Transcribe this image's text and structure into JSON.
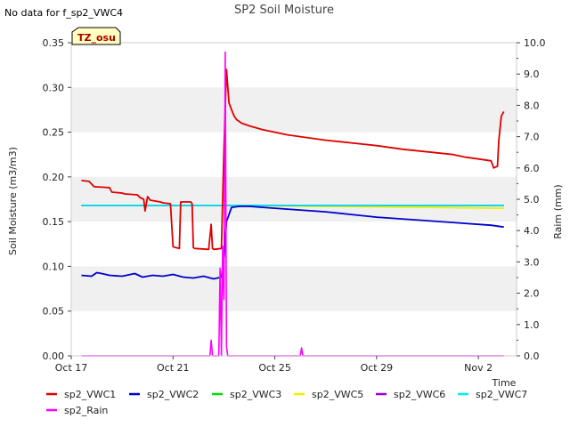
{
  "note": "No data for f_sp2_VWC4",
  "badge": "TZ_osu",
  "chart_data": {
    "type": "line",
    "title": "SP2 Soil Moisture",
    "xlabel": "Time",
    "ylabel": "Soil Moisture (m3/m3)",
    "y2label": "Raim (mm)",
    "xlim": [
      0,
      17.5
    ],
    "ylim": [
      0.0,
      0.35
    ],
    "y2lim": [
      0.0,
      10.0
    ],
    "x_ticks": [
      {
        "value": 0,
        "label": "Oct 17"
      },
      {
        "value": 4,
        "label": "Oct 21"
      },
      {
        "value": 8,
        "label": "Oct 25"
      },
      {
        "value": 12,
        "label": "Oct 29"
      },
      {
        "value": 16,
        "label": "Nov 2"
      }
    ],
    "y_ticks": [
      "0.00",
      "0.05",
      "0.10",
      "0.15",
      "0.20",
      "0.25",
      "0.30",
      "0.35"
    ],
    "y2_ticks": [
      "0.0",
      "1.0",
      "2.0",
      "3.0",
      "4.0",
      "5.0",
      "6.0",
      "7.0",
      "8.0",
      "9.0",
      "10.0"
    ],
    "grid_bands": true,
    "legend_position": "bottom",
    "series": [
      {
        "name": "sp2_VWC1",
        "color": "#dd0000",
        "axis": "left",
        "x": [
          0.4,
          0.7,
          0.9,
          1.5,
          1.6,
          2.0,
          2.1,
          2.6,
          2.7,
          2.85,
          2.9,
          3.0,
          3.1,
          3.5,
          3.6,
          3.9,
          4.0,
          4.1,
          4.25,
          4.3,
          4.7,
          4.75,
          4.8,
          4.85,
          5.4,
          5.5,
          5.55,
          5.6,
          5.9,
          6.0,
          6.1,
          6.2,
          6.3,
          6.4,
          6.5,
          6.7,
          7.0,
          7.5,
          8.0,
          8.5,
          9.0,
          10.0,
          11.0,
          12.0,
          13.0,
          14.0,
          15.0,
          15.5,
          16.0,
          16.5,
          16.6,
          16.75,
          16.8,
          16.9,
          17.0
        ],
        "y": [
          0.196,
          0.195,
          0.189,
          0.188,
          0.183,
          0.182,
          0.181,
          0.18,
          0.177,
          0.175,
          0.162,
          0.178,
          0.174,
          0.172,
          0.171,
          0.17,
          0.122,
          0.121,
          0.12,
          0.172,
          0.172,
          0.17,
          0.121,
          0.12,
          0.119,
          0.147,
          0.12,
          0.119,
          0.12,
          0.23,
          0.32,
          0.283,
          0.275,
          0.268,
          0.264,
          0.26,
          0.257,
          0.253,
          0.25,
          0.247,
          0.245,
          0.241,
          0.238,
          0.235,
          0.231,
          0.228,
          0.225,
          0.222,
          0.22,
          0.218,
          0.21,
          0.212,
          0.24,
          0.268,
          0.273
        ]
      },
      {
        "name": "sp2_VWC2",
        "color": "#0000cc",
        "axis": "left",
        "x": [
          0.4,
          0.8,
          1.0,
          1.2,
          1.5,
          2.0,
          2.5,
          2.8,
          3.2,
          3.6,
          4.0,
          4.4,
          4.8,
          5.2,
          5.6,
          5.9,
          6.0,
          6.1,
          6.3,
          6.6,
          7.0,
          8.0,
          9.0,
          10.0,
          11.0,
          12.0,
          13.0,
          14.0,
          15.0,
          16.0,
          16.5,
          17.0
        ],
        "y": [
          0.09,
          0.089,
          0.093,
          0.092,
          0.09,
          0.089,
          0.092,
          0.088,
          0.09,
          0.089,
          0.091,
          0.088,
          0.087,
          0.089,
          0.086,
          0.088,
          0.105,
          0.15,
          0.166,
          0.167,
          0.167,
          0.165,
          0.163,
          0.161,
          0.158,
          0.155,
          0.153,
          0.151,
          0.149,
          0.147,
          0.146,
          0.144
        ]
      },
      {
        "name": "sp2_VWC3",
        "color": "#00dd00",
        "axis": "left",
        "x": [
          0.4,
          17.0
        ],
        "y": [
          0.168,
          0.168
        ]
      },
      {
        "name": "sp2_VWC5",
        "color": "#eeee00",
        "axis": "left",
        "x": [
          0.4,
          6.0,
          10.0,
          14.0,
          17.0
        ],
        "y": [
          0.168,
          0.168,
          0.167,
          0.166,
          0.165
        ]
      },
      {
        "name": "sp2_VWC6",
        "color": "#9900cc",
        "axis": "left",
        "x": [
          0.4,
          17.0
        ],
        "y": [
          0.168,
          0.168
        ]
      },
      {
        "name": "sp2_VWC7",
        "color": "#00eeee",
        "axis": "left",
        "x": [
          0.4,
          17.0
        ],
        "y": [
          0.168,
          0.168
        ]
      },
      {
        "name": "sp2_Rain",
        "color": "#ff00ff",
        "axis": "right",
        "x": [
          0.4,
          5.45,
          5.5,
          5.55,
          5.8,
          5.85,
          5.9,
          5.95,
          6.0,
          6.05,
          6.1,
          6.15,
          6.2,
          9.0,
          9.05,
          9.1,
          17.0
        ],
        "y": [
          0.0,
          0.0,
          0.5,
          0.0,
          0.0,
          2.8,
          0.0,
          3.5,
          1.8,
          9.7,
          0.3,
          0.0,
          0.0,
          0.0,
          0.25,
          0.0,
          0.0
        ]
      }
    ]
  }
}
